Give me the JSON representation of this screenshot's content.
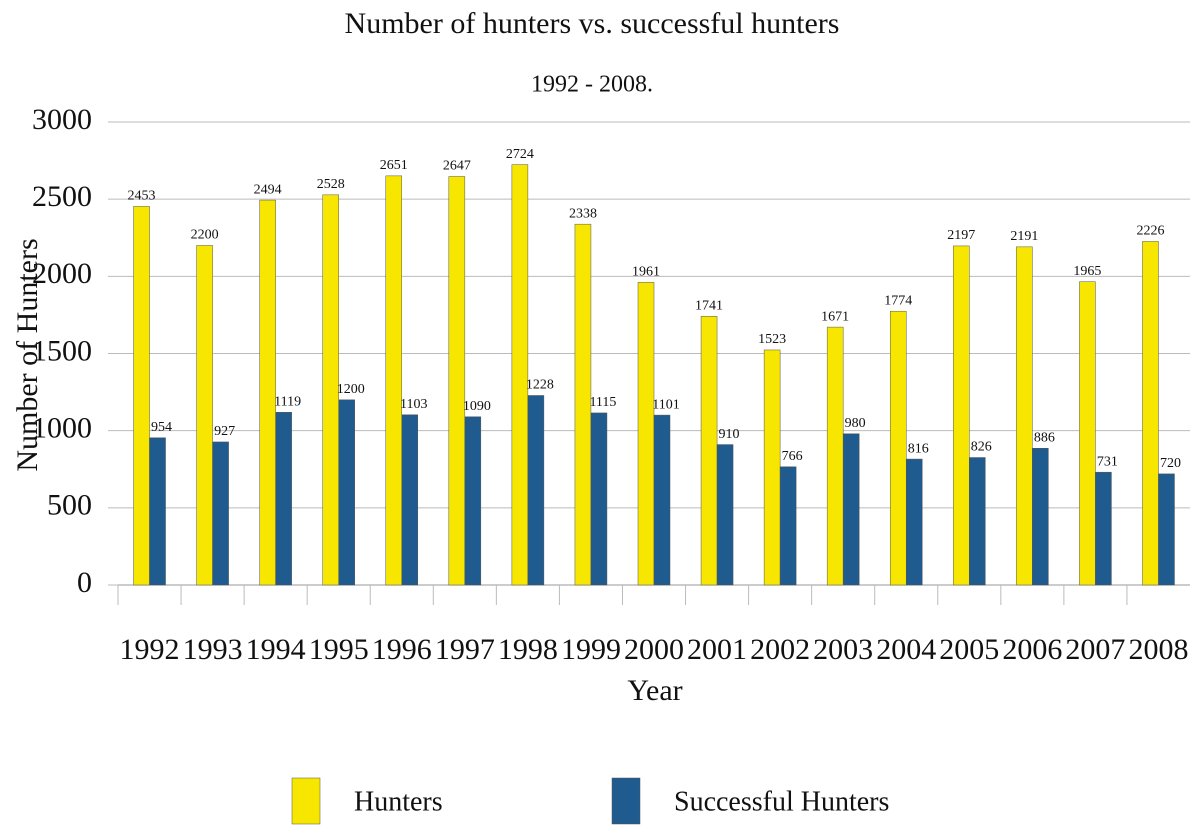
{
  "chart_data": {
    "type": "bar",
    "title": "Number of hunters vs. successful hunters",
    "subtitle": "1992 - 2008.",
    "y_label": "Number of Hunters",
    "x_label": "Year",
    "categories": [
      "1992",
      "1993",
      "1994",
      "1995",
      "1996",
      "1997",
      "1998",
      "1999",
      "2000",
      "2001",
      "2002",
      "2003",
      "2004",
      "2005",
      "2006",
      "2007",
      "2008"
    ],
    "series": [
      {
        "name": "Hunters",
        "color": "#f7e600",
        "values": [
          2453,
          2200,
          2494,
          2528,
          2651,
          2647,
          2724,
          2338,
          1961,
          1741,
          1523,
          1671,
          1774,
          2197,
          2191,
          1965,
          2226
        ]
      },
      {
        "name": "Successful Hunters",
        "color": "#1f5b8e",
        "values": [
          954,
          927,
          1119,
          1200,
          1103,
          1090,
          1228,
          1115,
          1101,
          910,
          766,
          980,
          816,
          826,
          886,
          731,
          720
        ]
      }
    ],
    "ylim": [
      0,
      3000
    ],
    "yticks": [
      0,
      500,
      1000,
      1500,
      2000,
      2500,
      3000
    ],
    "grid": true,
    "legend": "bottom"
  }
}
